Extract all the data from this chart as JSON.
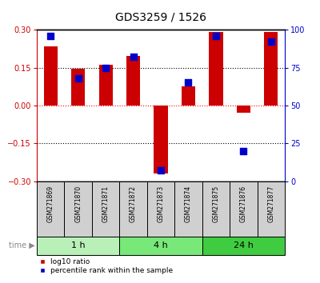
{
  "title": "GDS3259 / 1526",
  "samples": [
    "GSM271869",
    "GSM271870",
    "GSM271871",
    "GSM271872",
    "GSM271873",
    "GSM271874",
    "GSM271875",
    "GSM271876",
    "GSM271877"
  ],
  "log10_ratio": [
    0.235,
    0.145,
    0.16,
    0.195,
    -0.27,
    0.075,
    0.29,
    -0.03,
    0.29
  ],
  "percentile_rank": [
    96,
    68,
    75,
    82,
    7,
    65,
    96,
    20,
    92
  ],
  "groups": [
    {
      "label": "1 h",
      "samples": [
        0,
        1,
        2
      ],
      "color": "#b8f0b8"
    },
    {
      "label": "4 h",
      "samples": [
        3,
        4,
        5
      ],
      "color": "#78e878"
    },
    {
      "label": "24 h",
      "samples": [
        6,
        7,
        8
      ],
      "color": "#40cc40"
    }
  ],
  "ylim_left": [
    -0.3,
    0.3
  ],
  "ylim_right": [
    0,
    100
  ],
  "yticks_left": [
    -0.3,
    -0.15,
    0,
    0.15,
    0.3
  ],
  "yticks_right": [
    0,
    25,
    50,
    75,
    100
  ],
  "bar_color": "#cc0000",
  "dot_color": "#0000cc",
  "left_axis_color": "#cc0000",
  "right_axis_color": "#0000cc",
  "bar_width": 0.5,
  "dot_size": 40,
  "label_fontsize": 5.5,
  "tick_fontsize": 7,
  "title_fontsize": 10,
  "time_label": "time",
  "legend_bar": "log10 ratio",
  "legend_dot": "percentile rank within the sample",
  "cell_color": "#d0d0d0"
}
